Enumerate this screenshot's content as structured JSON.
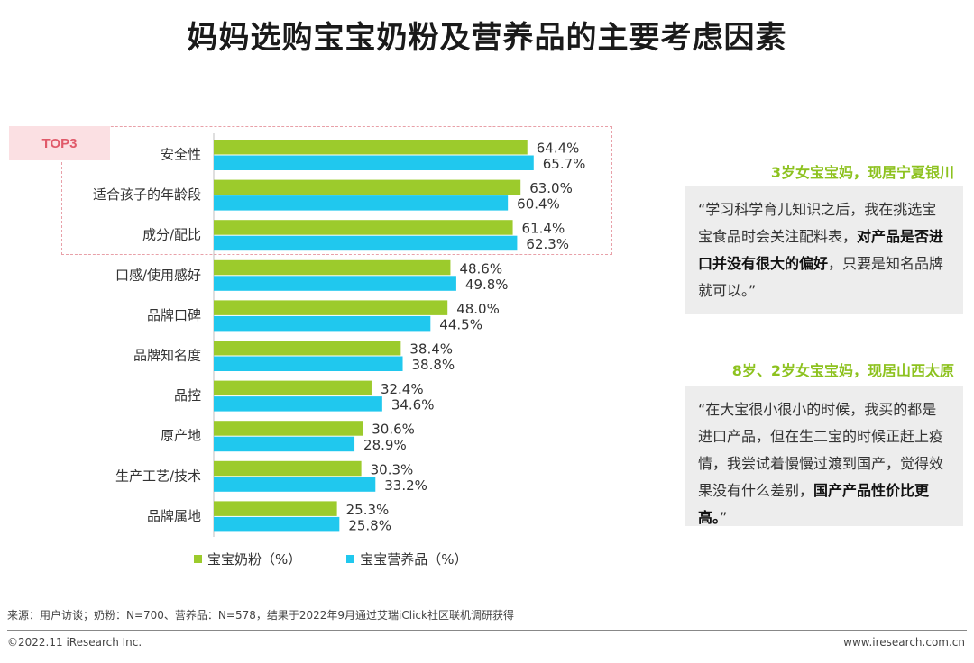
{
  "title": "妈妈选购宝宝奶粉及营养品的主要考虑因素",
  "top3_label": "TOP3",
  "colors": {
    "series1": "#9ccb2c",
    "series2": "#20c8ee",
    "highlight": "#e05a6a",
    "quote_head": "#8dc21f"
  },
  "chart_data": {
    "type": "bar",
    "orientation": "horizontal",
    "categories": [
      "安全性",
      "适合孩子的年龄段",
      "成分/配比",
      "口感/使用感好",
      "品牌口碑",
      "品牌知名度",
      "品控",
      "原产地",
      "生产工艺/技术",
      "品牌属地"
    ],
    "series": [
      {
        "name": "宝宝奶粉（%）",
        "values": [
          64.4,
          63.0,
          61.4,
          48.6,
          48.0,
          38.4,
          32.4,
          30.6,
          30.3,
          25.3
        ]
      },
      {
        "name": "宝宝营养品（%）",
        "values": [
          65.7,
          60.4,
          62.3,
          49.8,
          44.5,
          38.8,
          34.6,
          28.9,
          33.2,
          25.8
        ]
      }
    ],
    "value_labels": [
      [
        "64.4%",
        "63.0%",
        "61.4%",
        "48.6%",
        "48.0%",
        "38.4%",
        "32.4%",
        "30.6%",
        "30.3%",
        "25.3%"
      ],
      [
        "65.7%",
        "60.4%",
        "62.3%",
        "49.8%",
        "44.5%",
        "38.8%",
        "34.6%",
        "28.9%",
        "33.2%",
        "25.8%"
      ]
    ],
    "legend_position": "bottom",
    "grid": false
  },
  "quotes": [
    {
      "heading": "3岁女宝宝妈，现居宁夏银川",
      "before": "“学习科学育儿知识之后，我在挑选宝宝食品时会关注配料表，",
      "bold": "对产品是否进口并没有很大的偏好",
      "after": "，只要是知名品牌就可以。”"
    },
    {
      "heading": "8岁、2岁女宝宝妈，现居山西太原",
      "before": "“在大宝很小很小的时候，我买的都是进口产品，但在生二宝的时候正赶上疫情，我尝试着慢慢过渡到国产，觉得效果没有什么差别，",
      "bold": "国产产品性价比更高。",
      "after": "”"
    }
  ],
  "footnote": "来源：用户访谈；奶粉：N=700、营养品：N=578，结果于2022年9月通过艾瑞iClick社区联机调研获得",
  "footer": {
    "copyright": "©2022.11 iResearch Inc.",
    "website": "www.iresearch.com.cn"
  }
}
